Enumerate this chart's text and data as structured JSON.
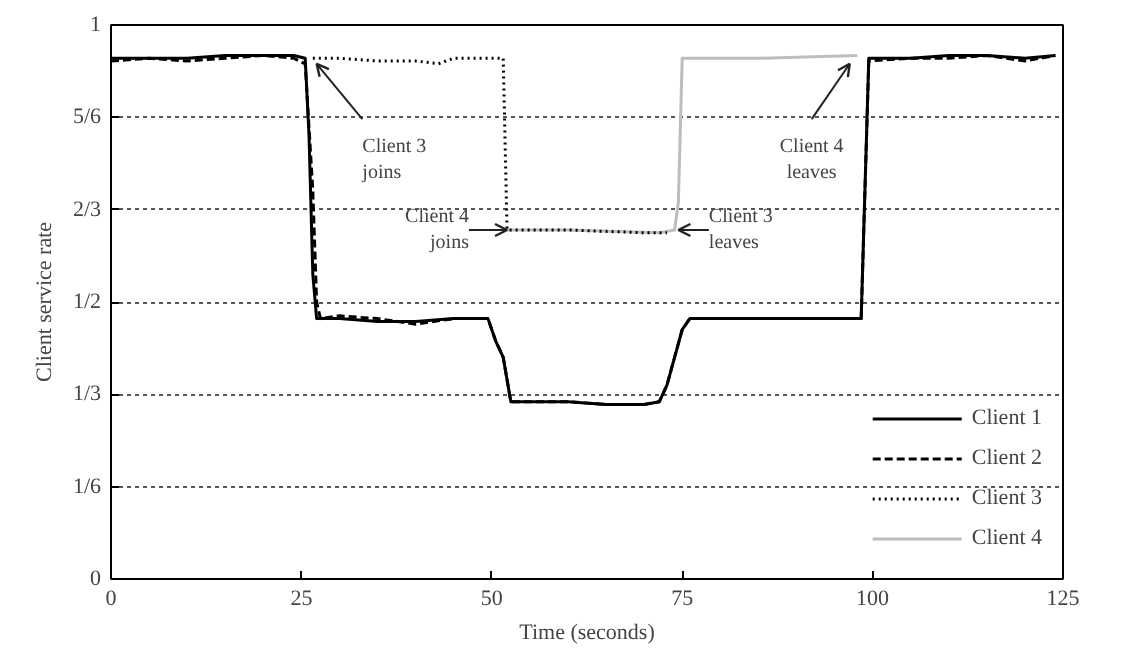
{
  "chart_data": {
    "type": "line",
    "xlabel": "Time (seconds)",
    "ylabel": "Client service rate",
    "xlim": [
      0,
      125
    ],
    "xticks": [
      0,
      25,
      50,
      75,
      100,
      125
    ],
    "ylim": [
      0,
      1
    ],
    "yticks": [
      0,
      {
        "value": 0.1667,
        "label": "1/6"
      },
      {
        "value": 0.3333,
        "label": "1/3"
      },
      {
        "value": 0.5,
        "label": "1/2"
      },
      {
        "value": 0.6667,
        "label": "2/3"
      },
      {
        "value": 0.8333,
        "label": "5/6"
      },
      1
    ],
    "grid": "y",
    "legend": "bottom right",
    "series": [
      {
        "name": "Client 1",
        "color": "#000000",
        "line_style": "solid",
        "x": [
          0,
          5,
          10,
          15,
          20,
          24,
          25.5,
          26,
          26.5,
          27,
          30,
          35,
          40,
          45,
          49.5,
          50.5,
          51.5,
          52.5,
          60,
          65,
          70,
          72,
          73,
          74,
          75,
          76,
          80,
          90,
          98.5,
          99.5,
          105,
          110,
          115,
          120,
          124
        ],
        "values": [
          0.94,
          0.94,
          0.94,
          0.945,
          0.945,
          0.945,
          0.94,
          0.8,
          0.55,
          0.47,
          0.47,
          0.465,
          0.465,
          0.47,
          0.47,
          0.43,
          0.4,
          0.32,
          0.32,
          0.315,
          0.315,
          0.32,
          0.35,
          0.4,
          0.45,
          0.47,
          0.47,
          0.47,
          0.47,
          0.94,
          0.94,
          0.945,
          0.945,
          0.94,
          0.945
        ]
      },
      {
        "name": "Client 2",
        "color": "#000000",
        "line_style": "dashed",
        "x": [
          0,
          5,
          10,
          15,
          20,
          24,
          25.5,
          26.5,
          27,
          27.5,
          30,
          35,
          40,
          45,
          49.5,
          50.5,
          51.5,
          52.5,
          60,
          65,
          70,
          72,
          73,
          74,
          75,
          76,
          80,
          90,
          98.5,
          99.5,
          105,
          110,
          115,
          120,
          124
        ],
        "values": [
          0.935,
          0.94,
          0.935,
          0.94,
          0.945,
          0.94,
          0.93,
          0.7,
          0.5,
          0.47,
          0.475,
          0.47,
          0.46,
          0.47,
          0.47,
          0.43,
          0.4,
          0.32,
          0.32,
          0.315,
          0.315,
          0.32,
          0.35,
          0.4,
          0.45,
          0.47,
          0.47,
          0.47,
          0.47,
          0.935,
          0.94,
          0.94,
          0.945,
          0.935,
          0.945
        ]
      },
      {
        "name": "Client 3",
        "color": "#000000",
        "line_style": "dotted",
        "x": [
          26.5,
          30,
          35,
          40,
          43,
          45,
          51.5,
          52,
          60,
          70,
          73
        ],
        "values": [
          0.94,
          0.94,
          0.935,
          0.935,
          0.93,
          0.94,
          0.94,
          0.63,
          0.63,
          0.625,
          0.625
        ]
      },
      {
        "name": "Client 4",
        "color": "#bdbdbd",
        "line_style": "solid",
        "x": [
          52,
          60,
          72,
          74,
          74.5,
          75,
          85,
          98
        ],
        "values": [
          0.63,
          0.63,
          0.625,
          0.63,
          0.68,
          0.94,
          0.94,
          0.945
        ]
      }
    ],
    "annotations": [
      {
        "text": "Client 3\njoins",
        "x": 27,
        "y": 0.93
      },
      {
        "text": "Client 4\njoins",
        "x": 52,
        "y": 0.63
      },
      {
        "text": "Client 3\nleaves",
        "x": 74.5,
        "y": 0.63
      },
      {
        "text": "Client 4\nleaves",
        "x": 97,
        "y": 0.93
      }
    ]
  }
}
